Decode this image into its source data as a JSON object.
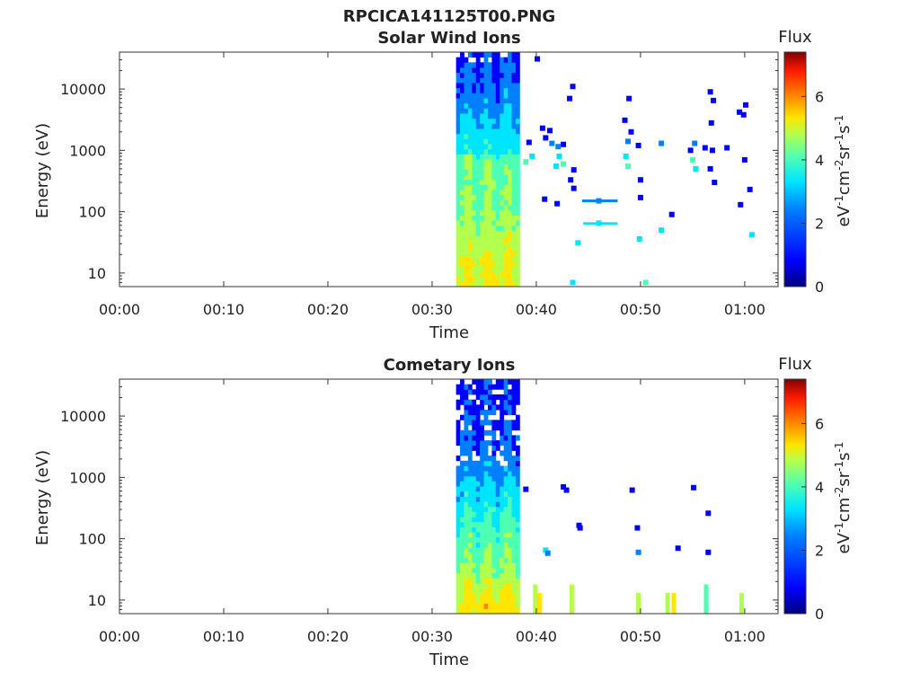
{
  "figure_title": "RPCICA141125T00.PNG",
  "colormap": [
    "#00007f",
    "#0000ff",
    "#0080ff",
    "#00e5ff",
    "#4dffb3",
    "#b3ff4d",
    "#ffe500",
    "#ff8000",
    "#ff1a00",
    "#7f0000"
  ],
  "chart_data": [
    {
      "type": "heatmap",
      "title": "Solar Wind Ions",
      "xlabel": "Time",
      "ylabel": "Energy (eV)",
      "x_ticks": [
        "00:00",
        "00:10",
        "00:20",
        "00:30",
        "00:40",
        "00:50",
        "01:00"
      ],
      "x_tick_minutes": [
        0,
        10,
        20,
        30,
        40,
        50,
        60
      ],
      "xlim_minutes": [
        0,
        63.2
      ],
      "y_scale": "log",
      "y_ticks": [
        "10",
        "100",
        "1000",
        "10000"
      ],
      "y_tick_values": [
        10,
        100,
        1000,
        10000
      ],
      "ylim": [
        6,
        40000
      ],
      "colorbar": {
        "label": "Flux",
        "units": "eV-1cm-2sr-1s-1",
        "range": [
          0,
          7.4
        ],
        "ticks": [
          "0",
          "2",
          "4",
          "6"
        ],
        "tick_values": [
          0,
          2,
          4,
          6
        ]
      },
      "dense_block": {
        "t_start_min": 32.3,
        "t_end_min": 38.4,
        "description_levels": [
          [
            10,
            4.6
          ],
          [
            100,
            3.6
          ],
          [
            700,
            3.4
          ],
          [
            1000,
            2.6
          ],
          [
            10000,
            1.4
          ],
          [
            38000,
            1.0
          ]
        ]
      },
      "cells": [
        {
          "t": 40.1,
          "e": 31000,
          "v": 1.0
        },
        {
          "t": 43.5,
          "e": 11000,
          "v": 1.0
        },
        {
          "t": 43.2,
          "e": 7000,
          "v": 1.0
        },
        {
          "t": 40.6,
          "e": 2300,
          "v": 1.0
        },
        {
          "t": 41.3,
          "e": 2100,
          "v": 1.0
        },
        {
          "t": 40.9,
          "e": 1600,
          "v": 1.0
        },
        {
          "t": 39.3,
          "e": 1350,
          "v": 1.0
        },
        {
          "t": 41.5,
          "e": 1300,
          "v": 1.8
        },
        {
          "t": 42.6,
          "e": 1250,
          "v": 1.0
        },
        {
          "t": 42.1,
          "e": 1150,
          "v": 1.3
        },
        {
          "t": 39.6,
          "e": 800,
          "v": 2.6
        },
        {
          "t": 39.0,
          "e": 650,
          "v": 3.0
        },
        {
          "t": 42.2,
          "e": 800,
          "v": 2.8
        },
        {
          "t": 42.6,
          "e": 600,
          "v": 3.2
        },
        {
          "t": 41.9,
          "e": 550,
          "v": 2.4
        },
        {
          "t": 43.6,
          "e": 480,
          "v": 1.2
        },
        {
          "t": 43.3,
          "e": 330,
          "v": 1.0
        },
        {
          "t": 43.6,
          "e": 240,
          "v": 1.0
        },
        {
          "t": 40.8,
          "e": 160,
          "v": 1.0
        },
        {
          "t": 42.0,
          "e": 135,
          "v": 1.0
        },
        {
          "t": 44.0,
          "e": 31,
          "v": 2.4
        },
        {
          "t": 43.5,
          "e": 7,
          "v": 2.8
        },
        {
          "t": 48.9,
          "e": 7000,
          "v": 1.0
        },
        {
          "t": 48.5,
          "e": 3100,
          "v": 1.0
        },
        {
          "t": 49.1,
          "e": 2000,
          "v": 1.0
        },
        {
          "t": 48.8,
          "e": 1400,
          "v": 1.8
        },
        {
          "t": 49.8,
          "e": 1200,
          "v": 1.0
        },
        {
          "t": 48.6,
          "e": 800,
          "v": 2.8
        },
        {
          "t": 48.8,
          "e": 550,
          "v": 3.2
        },
        {
          "t": 50.0,
          "e": 330,
          "v": 1.0
        },
        {
          "t": 50.0,
          "e": 170,
          "v": 1.0
        },
        {
          "t": 49.9,
          "e": 36,
          "v": 2.2
        },
        {
          "t": 50.5,
          "e": 7,
          "v": 3.6
        },
        {
          "t": 52.0,
          "e": 1300,
          "v": 2.0
        },
        {
          "t": 52.0,
          "e": 50,
          "v": 2.4
        },
        {
          "t": 53.0,
          "e": 90,
          "v": 1.0
        },
        {
          "t": 55.2,
          "e": 1300,
          "v": 2.0
        },
        {
          "t": 55.0,
          "e": 700,
          "v": 3.0
        },
        {
          "t": 55.3,
          "e": 500,
          "v": 2.6
        },
        {
          "t": 54.8,
          "e": 1000,
          "v": 1.0
        },
        {
          "t": 56.2,
          "e": 1100,
          "v": 1.0
        },
        {
          "t": 56.7,
          "e": 500,
          "v": 1.0
        },
        {
          "t": 57.1,
          "e": 300,
          "v": 1.0
        },
        {
          "t": 56.7,
          "e": 9000,
          "v": 1.0
        },
        {
          "t": 57.0,
          "e": 6500,
          "v": 1.0
        },
        {
          "t": 56.8,
          "e": 2800,
          "v": 1.0
        },
        {
          "t": 56.9,
          "e": 1000,
          "v": 1.0
        },
        {
          "t": 58.3,
          "e": 1100,
          "v": 1.0
        },
        {
          "t": 59.5,
          "e": 4200,
          "v": 1.0
        },
        {
          "t": 60.1,
          "e": 5500,
          "v": 1.0
        },
        {
          "t": 59.9,
          "e": 3800,
          "v": 1.0
        },
        {
          "t": 59.6,
          "e": 130,
          "v": 1.0
        },
        {
          "t": 60.0,
          "e": 700,
          "v": 1.0
        },
        {
          "t": 60.5,
          "e": 230,
          "v": 1.0
        },
        {
          "t": 60.7,
          "e": 42,
          "v": 2.6
        },
        {
          "t": 46.0,
          "e": 150,
          "v": 1.6
        },
        {
          "t": 46.0,
          "e": 65,
          "v": 2.2
        }
      ],
      "segments": [
        {
          "t0": 44.4,
          "t1": 47.8,
          "e": 150,
          "v": 1.6
        },
        {
          "t0": 44.5,
          "t1": 47.8,
          "e": 64,
          "v": 2.2
        }
      ]
    },
    {
      "type": "heatmap",
      "title": "Cometary Ions",
      "xlabel": "Time",
      "ylabel": "Energy (eV)",
      "x_ticks": [
        "00:00",
        "00:10",
        "00:20",
        "00:30",
        "00:40",
        "00:50",
        "01:00"
      ],
      "x_tick_minutes": [
        0,
        10,
        20,
        30,
        40,
        50,
        60
      ],
      "xlim_minutes": [
        0,
        63.2
      ],
      "y_scale": "log",
      "y_ticks": [
        "10",
        "100",
        "1000",
        "10000"
      ],
      "y_tick_values": [
        10,
        100,
        1000,
        10000
      ],
      "ylim": [
        6,
        40000
      ],
      "colorbar": {
        "label": "Flux",
        "units": "eV-1cm-2sr-1s-1",
        "range": [
          0,
          7.4
        ],
        "ticks": [
          "0",
          "2",
          "4",
          "6"
        ],
        "tick_values": [
          0,
          2,
          4,
          6
        ]
      },
      "dense_block": {
        "t_start_min": 32.3,
        "t_end_min": 38.4,
        "description_levels": [
          [
            8,
            4.8
          ],
          [
            30,
            3.8
          ],
          [
            100,
            3.2
          ],
          [
            700,
            2.2
          ],
          [
            3000,
            1.2
          ],
          [
            40000,
            0.9
          ]
        ]
      },
      "cells": [
        {
          "t": 39.0,
          "e": 640,
          "v": 1.0
        },
        {
          "t": 42.6,
          "e": 700,
          "v": 1.0
        },
        {
          "t": 42.9,
          "e": 620,
          "v": 1.0
        },
        {
          "t": 44.1,
          "e": 165,
          "v": 1.0
        },
        {
          "t": 44.2,
          "e": 150,
          "v": 1.0
        },
        {
          "t": 40.9,
          "e": 65,
          "v": 2.2
        },
        {
          "t": 41.1,
          "e": 58,
          "v": 2.0
        },
        {
          "t": 49.2,
          "e": 620,
          "v": 1.0
        },
        {
          "t": 49.7,
          "e": 150,
          "v": 1.0
        },
        {
          "t": 49.8,
          "e": 60,
          "v": 2.0
        },
        {
          "t": 55.1,
          "e": 680,
          "v": 1.0
        },
        {
          "t": 56.5,
          "e": 260,
          "v": 1.0
        },
        {
          "t": 56.5,
          "e": 60,
          "v": 1.0
        },
        {
          "t": 53.6,
          "e": 70,
          "v": 1.0
        }
      ],
      "bars": [
        {
          "t": 39.9,
          "e0": 6,
          "e1": 18,
          "v": 4.2
        },
        {
          "t": 40.3,
          "e0": 6,
          "e1": 13,
          "v": 4.6
        },
        {
          "t": 43.4,
          "e0": 6,
          "e1": 18,
          "v": 4.4
        },
        {
          "t": 49.8,
          "e0": 6,
          "e1": 13,
          "v": 4.2
        },
        {
          "t": 52.6,
          "e0": 6,
          "e1": 13,
          "v": 3.8
        },
        {
          "t": 53.2,
          "e0": 6,
          "e1": 13,
          "v": 4.6
        },
        {
          "t": 56.3,
          "e0": 6,
          "e1": 18,
          "v": 3.4
        },
        {
          "t": 59.7,
          "e0": 6,
          "e1": 13,
          "v": 4.4
        }
      ]
    }
  ]
}
